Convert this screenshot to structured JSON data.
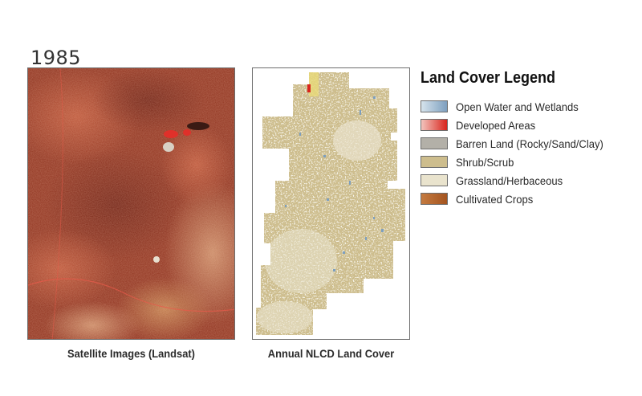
{
  "year": "1985",
  "panels": {
    "satellite_caption": "Satellite Images (Landsat)",
    "nlcd_caption": "Annual NLCD Land Cover"
  },
  "legend": {
    "title": "Land Cover Legend",
    "items": [
      {
        "label": "Open Water and Wetlands",
        "color": "#7d9fbf",
        "color2": "#d6e3ec"
      },
      {
        "label": "Developed Areas",
        "color": "#d9251d",
        "color2": "#f2c4bd"
      },
      {
        "label": "Barren Land (Rocky/Sand/Clay)",
        "color": "#b3b0a8",
        "color2": "#b3b0a8"
      },
      {
        "label": "Shrub/Scrub",
        "color": "#cdbd8d",
        "color2": "#cdbd8d"
      },
      {
        "label": "Grassland/Herbaceous",
        "color": "#e9e3cd",
        "color2": "#e9e3cd"
      },
      {
        "label": "Cultivated Crops",
        "color": "#a4541f",
        "color2": "#c47a40"
      }
    ]
  }
}
